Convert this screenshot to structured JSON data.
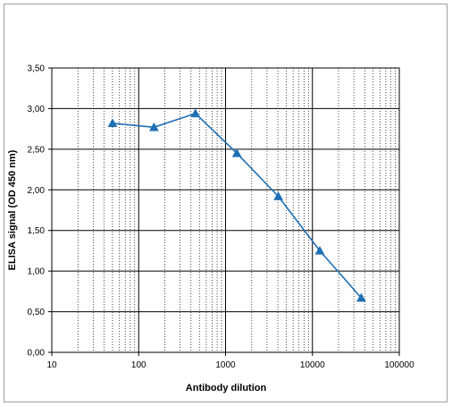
{
  "chart_data": {
    "type": "line",
    "title": "",
    "xlabel": "Antibody dilution",
    "ylabel": "ELISA signal (OD 450 nm)",
    "x_scale": "log",
    "xlim": [
      10,
      100000
    ],
    "ylim": [
      0,
      3.5
    ],
    "x_ticks": [
      10,
      100,
      1000,
      10000,
      100000
    ],
    "x_tick_labels": [
      "10",
      "100",
      "1000",
      "10000",
      "100000"
    ],
    "y_ticks": [
      0,
      0.5,
      1.0,
      1.5,
      2.0,
      2.5,
      3.0,
      3.5
    ],
    "y_tick_labels": [
      "0,00",
      "0,50",
      "1,00",
      "1,50",
      "2,00",
      "2,50",
      "3,00",
      "3,50"
    ],
    "grid": true,
    "legend": "none",
    "series": [
      {
        "x": [
          50,
          150,
          450,
          1350,
          4050,
          12150,
          36450
        ],
        "values": [
          2.82,
          2.77,
          2.94,
          2.45,
          1.92,
          1.25,
          0.67
        ],
        "color": "#1f6fb4",
        "marker": "triangle"
      }
    ]
  }
}
